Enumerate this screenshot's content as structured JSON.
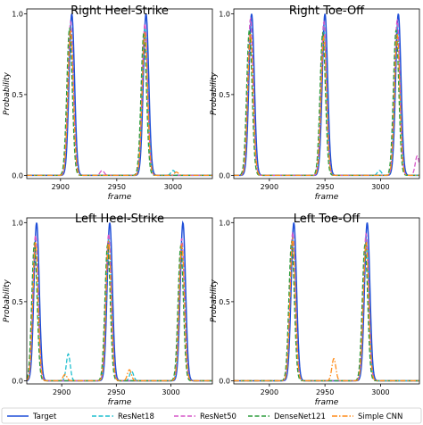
{
  "colors": {
    "Target": "#1f4fd8",
    "ResNet18": "#1fbfcf",
    "ResNet50": "#d657c8",
    "DenseNet121": "#2e9e3e",
    "Simple CNN": "#ff8c1a"
  },
  "legend": {
    "placement": "bottom",
    "items": [
      {
        "name": "Target",
        "dash": "solid"
      },
      {
        "name": "ResNet18",
        "dash": "dashed"
      },
      {
        "name": "ResNet50",
        "dash": "dashed"
      },
      {
        "name": "DenseNet121",
        "dash": "dashed"
      },
      {
        "name": "Simple CNN",
        "dash": "dashdot"
      }
    ]
  },
  "chart_data": [
    {
      "type": "line",
      "title": "Right Heel-Strike",
      "xlabel": "frame",
      "ylabel": "Probability",
      "xlim": [
        2870,
        3035
      ],
      "ylim": [
        -0.02,
        1.03
      ],
      "xticks": [
        2900,
        2950,
        3000
      ],
      "yticks": [
        0.0,
        0.5,
        1.0
      ],
      "series": [
        {
          "name": "Target",
          "peaks": [
            [
              2910,
              1.0
            ],
            [
              2976,
              1.0
            ]
          ],
          "bumps": []
        },
        {
          "name": "ResNet18",
          "peaks": [
            [
              2909,
              0.93
            ],
            [
              2975,
              0.92
            ]
          ],
          "bumps": [
            [
              3000,
              0.03
            ]
          ]
        },
        {
          "name": "ResNet50",
          "peaks": [
            [
              2909,
              0.95
            ],
            [
              2975,
              0.94
            ]
          ],
          "bumps": [
            [
              2937,
              0.03
            ]
          ]
        },
        {
          "name": "DenseNet121",
          "peaks": [
            [
              2908,
              0.91
            ],
            [
              2974,
              0.88
            ]
          ],
          "bumps": []
        },
        {
          "name": "Simple CNN",
          "peaks": [
            [
              2909,
              0.9
            ],
            [
              2975,
              0.88
            ]
          ],
          "bumps": [
            [
              3003,
              0.02
            ]
          ]
        }
      ]
    },
    {
      "type": "line",
      "title": "Right Toe-Off",
      "xlabel": "frame",
      "ylabel": "Probability",
      "xlim": [
        2868,
        3035
      ],
      "ylim": [
        -0.02,
        1.03
      ],
      "xticks": [
        2900,
        2950,
        3000
      ],
      "yticks": [
        0.0,
        0.5,
        1.0
      ],
      "series": [
        {
          "name": "Target",
          "peaks": [
            [
              2884,
              1.0
            ],
            [
              2950,
              1.0
            ],
            [
              3016,
              1.0
            ]
          ],
          "bumps": []
        },
        {
          "name": "ResNet18",
          "peaks": [
            [
              2883,
              0.95
            ],
            [
              2949,
              0.92
            ],
            [
              3015,
              0.93
            ]
          ],
          "bumps": [
            [
              2999,
              0.03
            ]
          ]
        },
        {
          "name": "ResNet50",
          "peaks": [
            [
              2883,
              0.97
            ],
            [
              2949,
              0.95
            ],
            [
              3015,
              0.96
            ]
          ],
          "bumps": [
            [
              3033,
              0.12
            ]
          ]
        },
        {
          "name": "DenseNet121",
          "peaks": [
            [
              2882,
              0.9
            ],
            [
              2948,
              0.88
            ],
            [
              3014,
              0.9
            ]
          ],
          "bumps": []
        },
        {
          "name": "Simple CNN",
          "peaks": [
            [
              2883,
              0.88
            ],
            [
              2949,
              0.86
            ],
            [
              3015,
              0.87
            ]
          ],
          "bumps": []
        }
      ]
    },
    {
      "type": "line",
      "title": "Left Heel-Strike",
      "xlabel": "frame",
      "ylabel": "Probability",
      "xlim": [
        2868,
        3038
      ],
      "ylim": [
        -0.02,
        1.03
      ],
      "xticks": [
        2900,
        2950,
        3000
      ],
      "yticks": [
        0.0,
        0.5,
        1.0
      ],
      "series": [
        {
          "name": "Target",
          "peaks": [
            [
              2877,
              1.0
            ],
            [
              2944,
              1.0
            ],
            [
              3011,
              1.0
            ]
          ],
          "bumps": []
        },
        {
          "name": "ResNet18",
          "peaks": [
            [
              2876,
              0.9
            ],
            [
              2943,
              0.9
            ],
            [
              3010,
              0.88
            ]
          ],
          "bumps": [
            [
              2906,
              0.17
            ],
            [
              2964,
              0.06
            ]
          ]
        },
        {
          "name": "ResNet50",
          "peaks": [
            [
              2876,
              0.92
            ],
            [
              2943,
              0.93
            ],
            [
              3010,
              0.9
            ]
          ],
          "bumps": []
        },
        {
          "name": "DenseNet121",
          "peaks": [
            [
              2875,
              0.87
            ],
            [
              2942,
              0.86
            ],
            [
              3009,
              0.85
            ]
          ],
          "bumps": []
        },
        {
          "name": "Simple CNN",
          "peaks": [
            [
              2876,
              0.88
            ],
            [
              2943,
              0.88
            ],
            [
              3010,
              0.86
            ]
          ],
          "bumps": [
            [
              2903,
              0.04
            ],
            [
              2962,
              0.07
            ]
          ]
        }
      ]
    },
    {
      "type": "line",
      "title": "Left Toe-Off",
      "xlabel": "frame",
      "ylabel": "Probability",
      "xlim": [
        2868,
        3035
      ],
      "ylim": [
        -0.02,
        1.03
      ],
      "xticks": [
        2900,
        2950,
        3000
      ],
      "yticks": [
        0.0,
        0.5,
        1.0
      ],
      "series": [
        {
          "name": "Target",
          "peaks": [
            [
              2922,
              1.0
            ],
            [
              2988,
              1.0
            ]
          ],
          "bumps": []
        },
        {
          "name": "ResNet18",
          "peaks": [
            [
              2921,
              0.92
            ],
            [
              2987,
              0.9
            ]
          ],
          "bumps": []
        },
        {
          "name": "ResNet50",
          "peaks": [
            [
              2921,
              0.94
            ],
            [
              2987,
              0.93
            ]
          ],
          "bumps": []
        },
        {
          "name": "DenseNet121",
          "peaks": [
            [
              2920,
              0.88
            ],
            [
              2986,
              0.86
            ]
          ],
          "bumps": []
        },
        {
          "name": "Simple CNN",
          "peaks": [
            [
              2921,
              0.9
            ],
            [
              2987,
              0.88
            ]
          ],
          "bumps": [
            [
              2958,
              0.14
            ]
          ]
        }
      ]
    }
  ]
}
